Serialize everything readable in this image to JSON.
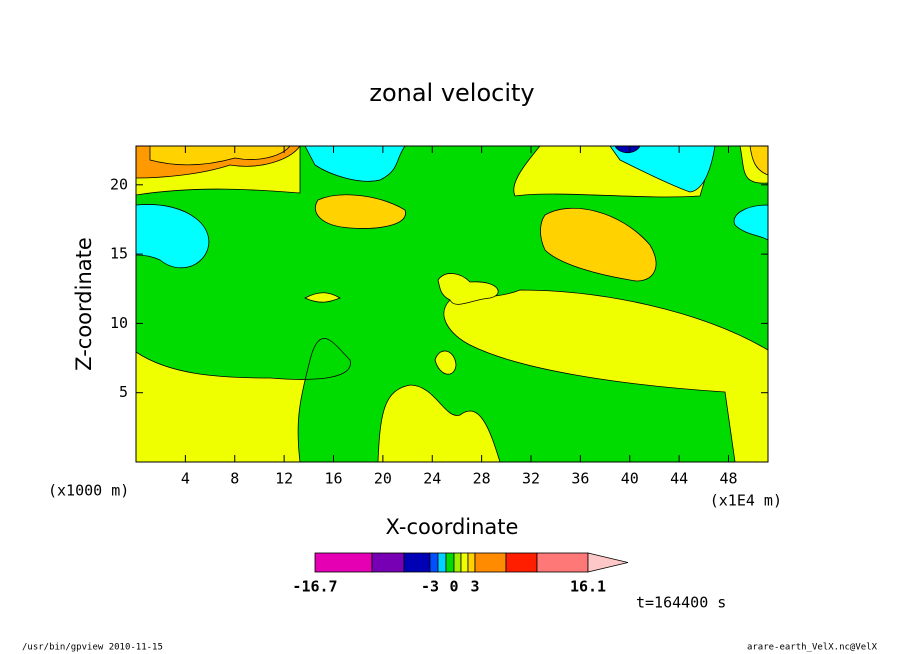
{
  "chart_data": {
    "type": "contour",
    "title": "zonal velocity",
    "x_label": "X-coordinate",
    "y_label": "Z-coordinate",
    "x_unit": "(x1000 m)",
    "x_unit_right": "(x1E4 m)",
    "xlim": [
      0,
      51.2
    ],
    "xticks": [
      4,
      8,
      12,
      16,
      20,
      24,
      28,
      32,
      36,
      40,
      44,
      48
    ],
    "ylim": [
      0,
      22.8
    ],
    "yticks": [
      5,
      10,
      15,
      20
    ],
    "levels": [
      -16.7,
      -12,
      -8,
      -3,
      -2,
      -1,
      0,
      1,
      2,
      3,
      8,
      12,
      16.1
    ],
    "colors": [
      "#e600b4",
      "#7800b4",
      "#0000b4",
      "#0050ff",
      "#00d2ff",
      "#00dc00",
      "#a0f000",
      "#f0ff00",
      "#ffd200",
      "#ff8c00",
      "#ff1e00",
      "#ff7878",
      "#ffc8c8"
    ],
    "colorbar_ticks": [
      -16.7,
      -3,
      0,
      3,
      16.1
    ],
    "time_label": "t=164400 s",
    "footer_left": "/usr/bin/gpview  2010-11-15",
    "footer_right": "arare-earth_VelX.nc@VelX"
  }
}
